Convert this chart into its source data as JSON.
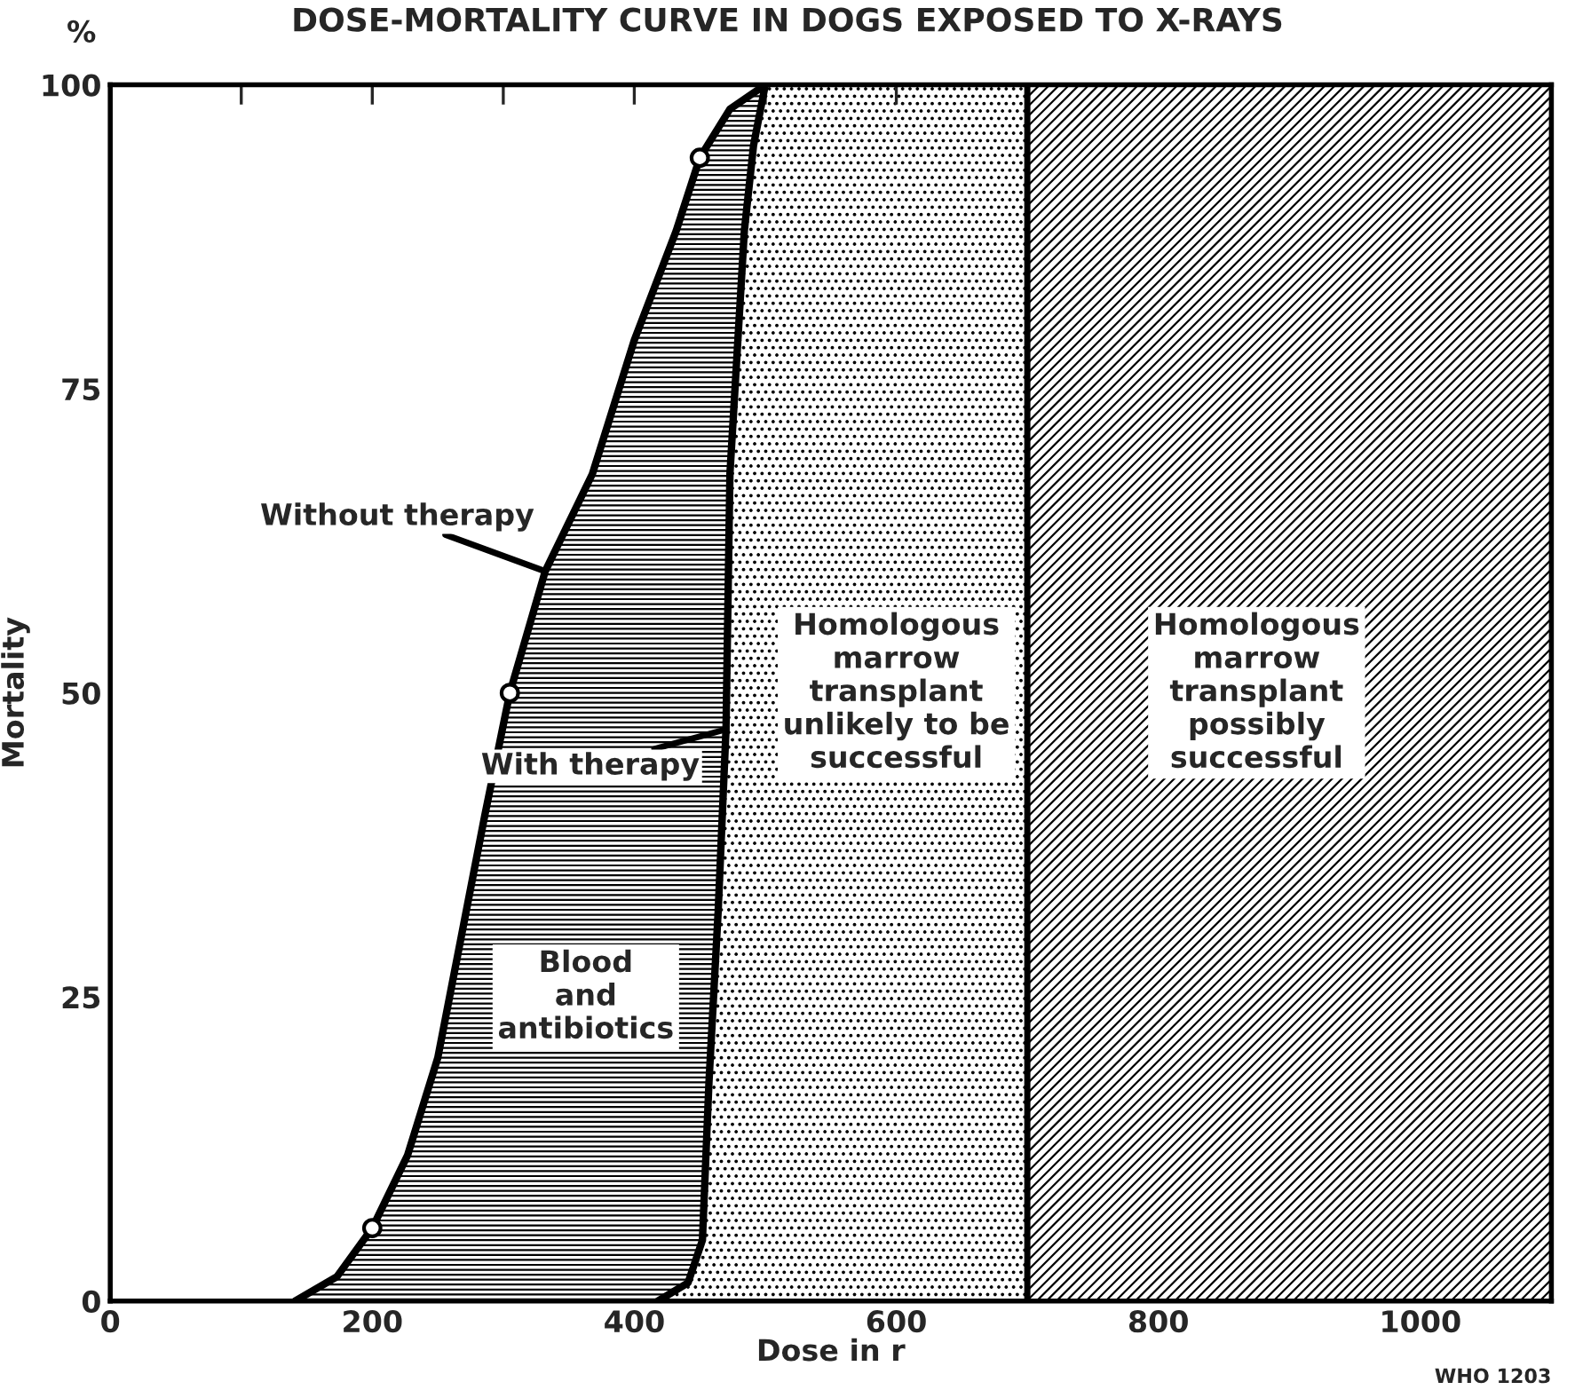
{
  "chart_data": {
    "type": "area",
    "title": "DOSE-MORTALITY CURVE IN DOGS EXPOSED TO X-RAYS",
    "xlabel": "Dose in r",
    "ylabel": "Mortality",
    "series": [
      {
        "name": "Without therapy",
        "color": "#000000",
        "x": [
          141,
          173,
          200,
          227,
          250,
          268,
          286,
          305,
          332,
          368,
          400,
          432,
          450,
          473,
          500
        ],
        "values": [
          0,
          2,
          6,
          12,
          20,
          30,
          40,
          50,
          60,
          68,
          79,
          88,
          94,
          98,
          100
        ]
      },
      {
        "name": "With therapy",
        "color": "#000000",
        "x": [
          418,
          441,
          452,
          457,
          464,
          470,
          473,
          484,
          491,
          500
        ],
        "values": [
          0,
          1.5,
          5,
          18,
          32,
          47,
          68,
          88,
          95,
          100
        ]
      },
      {
        "type": "scatter",
        "color": "#000000",
        "marker": "circle",
        "x": [
          200,
          305,
          450
        ],
        "values": [
          6,
          50,
          94
        ]
      }
    ],
    "bands": [
      {
        "axis": "x",
        "from": 500,
        "to": 700,
        "label": "Homologous\nmarrow\ntransplant\nunlikely to be\nsuccessful",
        "color": "#000000"
      },
      {
        "axis": "x",
        "from": 700,
        "to": 1100,
        "label": "Homologous\nmarrow\ntransplant\npossibly\nsuccessful",
        "color": "#000000"
      }
    ],
    "annotations": [
      "Blood\nand\nantibiotics",
      "%",
      "WHO 1203"
    ],
    "xlim": [
      0,
      1100
    ],
    "ylim": [
      0,
      100
    ],
    "xticks": [
      0,
      {
        "value": 100,
        "label": null
      },
      200,
      {
        "value": 300,
        "label": null
      },
      400,
      {
        "value": 500,
        "label": null
      },
      600,
      {
        "value": 700,
        "label": null
      },
      800,
      {
        "value": 900,
        "label": null
      },
      1000
    ],
    "yticks": [
      0,
      25,
      50,
      75,
      100
    ]
  }
}
